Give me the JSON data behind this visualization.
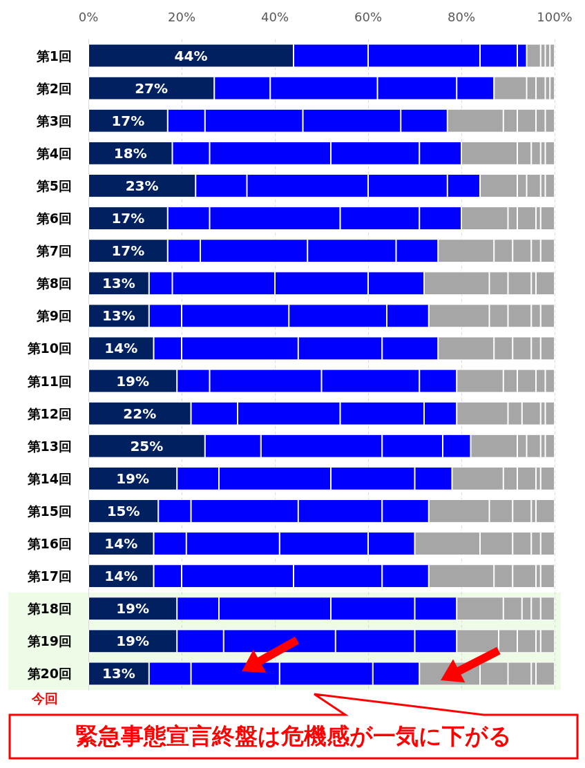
{
  "chart_data": {
    "type": "bar",
    "orientation": "horizontal",
    "stacked": true,
    "categories": [
      "第1回",
      "第2回",
      "第3回",
      "第4回",
      "第5回",
      "第6回",
      "第7回",
      "第8回",
      "第9回",
      "第10回",
      "第11回",
      "第12回",
      "第13回",
      "第14回",
      "第15回",
      "第16回",
      "第17回",
      "第18回",
      "第19回",
      "第20回"
    ],
    "series": [
      {
        "color": "#002060",
        "values": [
          44,
          27,
          17,
          18,
          23,
          17,
          17,
          13,
          13,
          14,
          19,
          22,
          25,
          19,
          15,
          14,
          14,
          19,
          19,
          13
        ],
        "value_labels": [
          "44%",
          "27%",
          "17%",
          "18%",
          "23%",
          "17%",
          "17%",
          "13%",
          "13%",
          "14%",
          "19%",
          "22%",
          "25%",
          "19%",
          "15%",
          "14%",
          "14%",
          "19%",
          "19%",
          "13%"
        ]
      },
      {
        "color": "#0000ff",
        "values": [
          16,
          12,
          8,
          8,
          11,
          9,
          7,
          5,
          7,
          6,
          7,
          10,
          12,
          9,
          7,
          7,
          6,
          9,
          10,
          9
        ]
      },
      {
        "color": "#0000ff",
        "values": [
          24,
          23,
          21,
          26,
          26,
          28,
          23,
          22,
          23,
          25,
          24,
          22,
          26,
          24,
          23,
          20,
          24,
          24,
          24,
          19
        ]
      },
      {
        "color": "#0000ff",
        "values": [
          8,
          17,
          21,
          19,
          17,
          17,
          19,
          20,
          21,
          18,
          21,
          18,
          13,
          18,
          18,
          19,
          19,
          18,
          17,
          20
        ]
      },
      {
        "color": "#0000ff",
        "values": [
          2,
          8,
          10,
          9,
          7,
          9,
          9,
          12,
          9,
          12,
          8,
          7,
          6,
          8,
          10,
          10,
          10,
          9,
          9,
          10
        ]
      },
      {
        "color": "#a6a6a6",
        "values": [
          3,
          7,
          12,
          12,
          8,
          10,
          12,
          14,
          13,
          12,
          10,
          11,
          10,
          11,
          13,
          14,
          14,
          10,
          9,
          13
        ]
      },
      {
        "color": "#a6a6a6",
        "values": [
          null,
          2,
          3,
          3,
          2,
          2,
          4,
          4,
          4,
          4,
          3,
          3,
          2,
          3,
          5,
          7,
          4,
          4,
          4,
          6
        ]
      },
      {
        "color": "#a6a6a6",
        "values": [
          1,
          2,
          4,
          2,
          3,
          4,
          4,
          5,
          5,
          4,
          4,
          4,
          3,
          4,
          4,
          4,
          5,
          2,
          4,
          5
        ]
      },
      {
        "color": "#a6a6a6",
        "values": [
          1,
          1,
          2,
          1,
          1,
          1,
          2,
          1,
          2,
          2,
          2,
          1,
          1,
          1,
          1,
          2,
          1,
          2,
          1,
          1
        ]
      },
      {
        "color": "#a6a6a6",
        "values": [
          1,
          1,
          2,
          2,
          2,
          3,
          3,
          4,
          3,
          3,
          2,
          2,
          2,
          3,
          4,
          3,
          3,
          3,
          3,
          4
        ]
      }
    ],
    "xlim": [
      0,
      100
    ],
    "xticks": [
      {
        "value": 0,
        "label": "0%"
      },
      {
        "value": 20,
        "label": "20%"
      },
      {
        "value": 40,
        "label": "40%"
      },
      {
        "value": 60,
        "label": "60%"
      },
      {
        "value": 80,
        "label": "80%"
      },
      {
        "value": 100,
        "label": "100%"
      }
    ],
    "grid": "x",
    "bands": [
      {
        "axis": "y",
        "from": "第18回",
        "to": "第20回",
        "color": "#edfbe7"
      }
    ],
    "annotations": [
      "今回",
      "緊急事態宣言終盤は危機感が一気に下がる"
    ]
  }
}
